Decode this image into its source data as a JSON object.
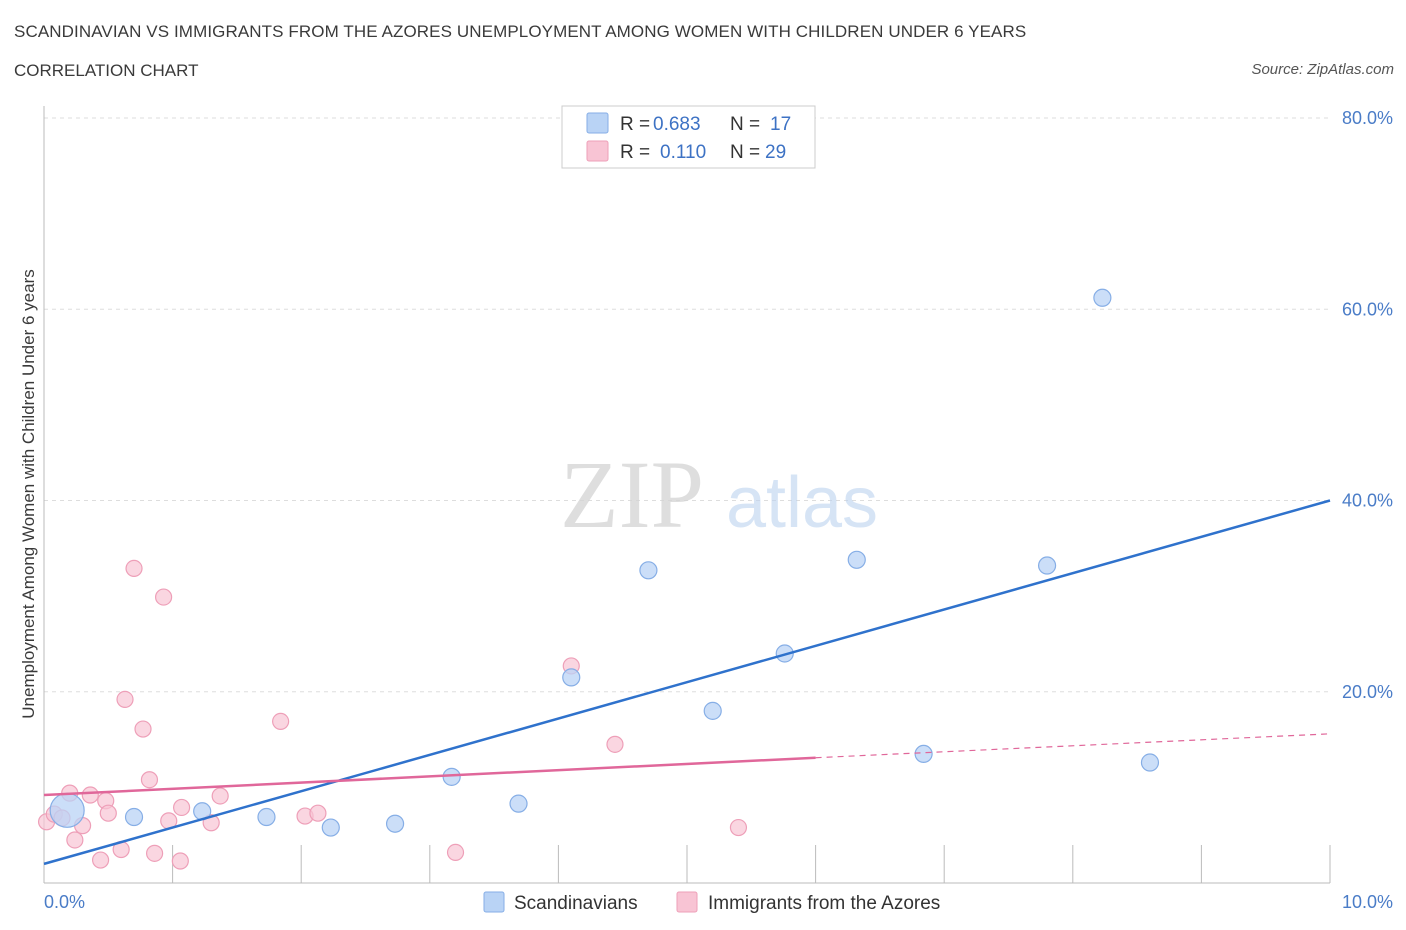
{
  "title": "SCANDINAVIAN VS IMMIGRANTS FROM THE AZORES UNEMPLOYMENT AMONG WOMEN WITH CHILDREN UNDER 6 YEARS",
  "subtitle": "CORRELATION CHART",
  "source": "Source: ZipAtlas.com",
  "watermark": {
    "zip": "ZIP",
    "atlas": "atlas"
  },
  "colors": {
    "blue": "#2f72cc",
    "blue_fill": "#b9d3f5",
    "blue_stroke": "#86aee6",
    "pink": "#e0679a",
    "pink_fill": "#f8c4d4",
    "pink_stroke": "#ee9fb8",
    "grid": "#dddddd",
    "tick_text": "#4a7cc7"
  },
  "legend": {
    "r_label": "R =",
    "n_label": "N =",
    "rows": [
      {
        "series": "Scandinavians",
        "r": "0.683",
        "n": "17"
      },
      {
        "series": "Immigrants from the Azores",
        "r": "0.110",
        "n": "29"
      }
    ]
  },
  "chart_data": {
    "type": "scatter",
    "title": "SCANDINAVIAN VS IMMIGRANTS FROM THE AZORES UNEMPLOYMENT AMONG WOMEN WITH CHILDREN UNDER 6 YEARS",
    "xlabel": "",
    "ylabel": "Unemployment Among Women with Children Under 6 years",
    "xlim": [
      0,
      10
    ],
    "ylim": [
      0,
      80
    ],
    "x_tick_labels": [
      "0.0%",
      "10.0%"
    ],
    "y_ticks": [
      20,
      40,
      60,
      80
    ],
    "y_tick_labels": [
      "20.0%",
      "40.0%",
      "60.0%",
      "80.0%"
    ],
    "grid": true,
    "legend_position": "top-center",
    "series": [
      {
        "name": "Scandinavians",
        "points": [
          {
            "x": 0.18,
            "y": 7.6,
            "big": true
          },
          {
            "x": 0.7,
            "y": 6.9
          },
          {
            "x": 1.23,
            "y": 7.5
          },
          {
            "x": 1.73,
            "y": 6.9
          },
          {
            "x": 2.23,
            "y": 5.8
          },
          {
            "x": 2.73,
            "y": 6.2
          },
          {
            "x": 3.17,
            "y": 11.1
          },
          {
            "x": 3.69,
            "y": 8.3
          },
          {
            "x": 4.1,
            "y": 21.5
          },
          {
            "x": 4.7,
            "y": 32.7
          },
          {
            "x": 5.2,
            "y": 18.0
          },
          {
            "x": 5.76,
            "y": 24.0
          },
          {
            "x": 6.32,
            "y": 33.8
          },
          {
            "x": 6.84,
            "y": 13.5
          },
          {
            "x": 7.8,
            "y": 33.2
          },
          {
            "x": 8.23,
            "y": 61.2
          },
          {
            "x": 8.6,
            "y": 12.6
          }
        ],
        "trend": {
          "x0": 0.0,
          "y0": 2.0,
          "x1": 10.0,
          "y1": 40.0
        }
      },
      {
        "name": "Immigrants from the Azores",
        "points": [
          {
            "x": 0.02,
            "y": 6.4
          },
          {
            "x": 0.08,
            "y": 7.2
          },
          {
            "x": 0.14,
            "y": 6.8
          },
          {
            "x": 0.2,
            "y": 9.4
          },
          {
            "x": 0.24,
            "y": 4.5
          },
          {
            "x": 0.3,
            "y": 6.0
          },
          {
            "x": 0.36,
            "y": 9.2
          },
          {
            "x": 0.44,
            "y": 2.4
          },
          {
            "x": 0.48,
            "y": 8.6
          },
          {
            "x": 0.5,
            "y": 7.3
          },
          {
            "x": 0.6,
            "y": 3.5
          },
          {
            "x": 0.63,
            "y": 19.2
          },
          {
            "x": 0.7,
            "y": 32.9
          },
          {
            "x": 0.77,
            "y": 16.1
          },
          {
            "x": 0.82,
            "y": 10.8
          },
          {
            "x": 0.86,
            "y": 3.1
          },
          {
            "x": 0.93,
            "y": 29.9
          },
          {
            "x": 0.97,
            "y": 6.5
          },
          {
            "x": 1.06,
            "y": 2.3
          },
          {
            "x": 1.07,
            "y": 7.9
          },
          {
            "x": 1.3,
            "y": 6.3
          },
          {
            "x": 1.37,
            "y": 9.1
          },
          {
            "x": 1.84,
            "y": 16.9
          },
          {
            "x": 2.03,
            "y": 7.0
          },
          {
            "x": 2.13,
            "y": 7.3
          },
          {
            "x": 3.2,
            "y": 3.2
          },
          {
            "x": 4.1,
            "y": 22.7
          },
          {
            "x": 4.44,
            "y": 14.5
          },
          {
            "x": 5.4,
            "y": 5.8
          }
        ],
        "trend": {
          "x0": 0.0,
          "y0": 9.2,
          "x1": 6.0,
          "y1": 13.1
        },
        "trend_dashed": {
          "x0": 6.0,
          "y0": 13.1,
          "x1": 10.0,
          "y1": 15.6
        }
      }
    ]
  }
}
